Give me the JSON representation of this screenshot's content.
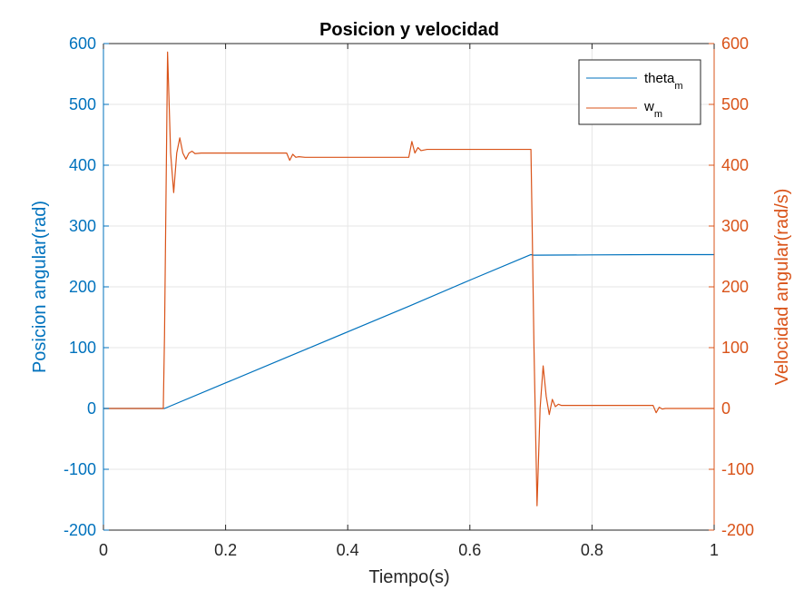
{
  "chart_data": {
    "type": "line",
    "title": "Posicion y velocidad",
    "xlabel": "Tiempo(s)",
    "ylabel_left": "Posicion angular(rad)",
    "ylabel_right": "Velocidad angular(rad/s)",
    "xlim": [
      0,
      1
    ],
    "ylim_left": [
      -200,
      600
    ],
    "ylim_right": [
      -200,
      600
    ],
    "x_ticks": [
      0,
      0.2,
      0.4,
      0.6,
      0.8,
      1
    ],
    "x_tick_labels": [
      "0",
      "0.2",
      "0.4",
      "0.6",
      "0.8",
      "1"
    ],
    "y_ticks": [
      -200,
      -100,
      0,
      100,
      200,
      300,
      400,
      500,
      600
    ],
    "y_tick_labels": [
      "-200",
      "-100",
      "0",
      "100",
      "200",
      "300",
      "400",
      "500",
      "600"
    ],
    "grid": true,
    "legend_position": "top-right",
    "legend": [
      {
        "base": "theta",
        "sub": "m"
      },
      {
        "base": "w",
        "sub": "m"
      }
    ],
    "colors": {
      "left_axis": "#0072BD",
      "right_axis": "#D95319",
      "grid": "#e6e6e6",
      "box": "#262626"
    },
    "series": [
      {
        "name": "theta_m",
        "axis": "left",
        "color": "#0072BD",
        "x": [
          0,
          0.1,
          0.2,
          0.3,
          0.4,
          0.5,
          0.6,
          0.7,
          0.705,
          0.8,
          0.9,
          1.0
        ],
        "y": [
          0,
          0,
          42,
          84,
          126,
          168,
          211,
          253,
          252,
          252.5,
          253,
          253
        ]
      },
      {
        "name": "w_m",
        "axis": "right",
        "color": "#D95319",
        "x": [
          0,
          0.098,
          0.1,
          0.105,
          0.11,
          0.115,
          0.12,
          0.125,
          0.13,
          0.135,
          0.14,
          0.145,
          0.15,
          0.16,
          0.18,
          0.2,
          0.3,
          0.305,
          0.31,
          0.315,
          0.32,
          0.33,
          0.35,
          0.4,
          0.5,
          0.505,
          0.51,
          0.515,
          0.52,
          0.53,
          0.55,
          0.6,
          0.69,
          0.7,
          0.702,
          0.705,
          0.71,
          0.715,
          0.72,
          0.725,
          0.73,
          0.735,
          0.74,
          0.745,
          0.75,
          0.76,
          0.78,
          0.8,
          0.9,
          0.905,
          0.91,
          0.915,
          0.92,
          0.93,
          0.95,
          1.0
        ],
        "y": [
          0,
          0,
          120,
          586,
          420,
          355,
          420,
          445,
          420,
          410,
          420,
          423,
          419,
          420,
          420,
          420,
          420,
          408,
          418,
          413,
          414,
          413,
          413,
          413,
          413,
          439,
          420,
          429,
          424,
          426,
          426,
          426,
          426,
          426,
          300,
          100,
          -160,
          0,
          70,
          20,
          -10,
          15,
          3,
          7,
          5,
          5,
          5,
          5,
          5,
          -7,
          2,
          -1,
          0,
          0,
          0,
          0
        ]
      }
    ]
  }
}
